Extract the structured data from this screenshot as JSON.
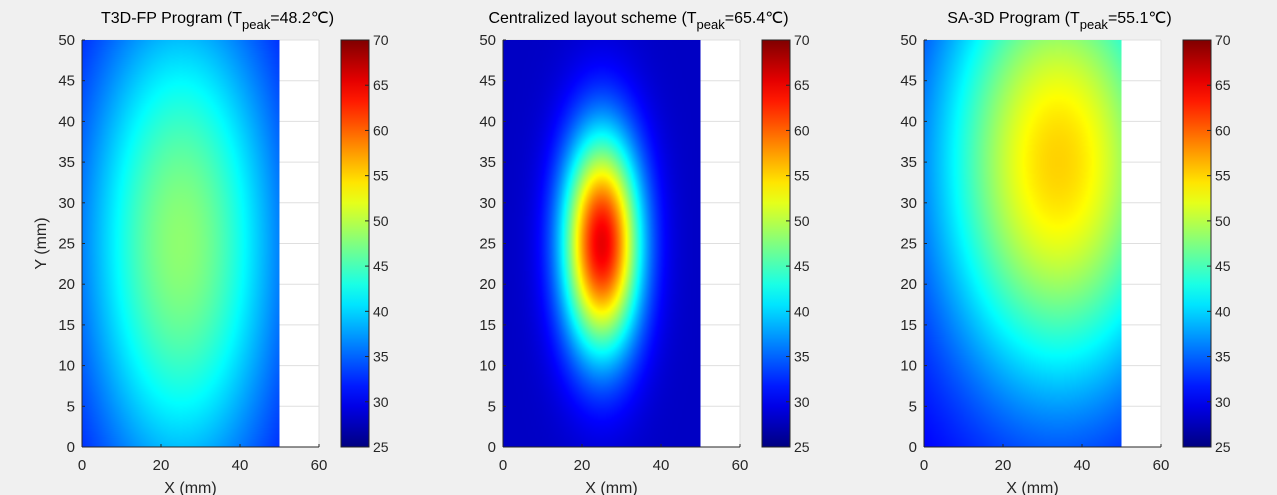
{
  "figure": {
    "background": "#f0f0f0",
    "colormap": "jet"
  },
  "chart_data": [
    {
      "type": "heatmap",
      "title_prefix": "T3D-FP Program (T",
      "title_sub": "peak",
      "title_suffix": "=48.2℃)",
      "peak_temperature": 48.2,
      "xlabel": "X (mm)",
      "ylabel": "Y (mm)",
      "xlim": [
        0,
        60
      ],
      "ylim": [
        0,
        50
      ],
      "xticks": [
        "0",
        "20",
        "40",
        "60"
      ],
      "yticks": [
        "0",
        "5",
        "10",
        "15",
        "20",
        "25",
        "30",
        "35",
        "40",
        "45",
        "50"
      ],
      "data_extent_x": [
        0,
        50
      ],
      "data_extent_y": [
        0,
        50
      ],
      "hotspot": {
        "x": 25,
        "y": 25,
        "sigma_x": 18,
        "sigma_y": 22
      },
      "base_temperature": 29,
      "colorbar": {
        "clim": [
          25,
          70
        ],
        "ticks": [
          "25",
          "30",
          "35",
          "40",
          "45",
          "50",
          "55",
          "60",
          "65",
          "70"
        ]
      },
      "grid": true
    },
    {
      "type": "heatmap",
      "title_prefix": "Centralized layout scheme (T",
      "title_sub": "peak",
      "title_suffix": "=65.4℃)",
      "peak_temperature": 65.4,
      "xlabel": "X (mm)",
      "ylabel": "",
      "xlim": [
        0,
        60
      ],
      "ylim": [
        0,
        50
      ],
      "xticks": [
        "0",
        "20",
        "40",
        "60"
      ],
      "yticks": [
        "0",
        "5",
        "10",
        "15",
        "20",
        "25",
        "30",
        "35",
        "40",
        "45",
        "50"
      ],
      "data_extent_x": [
        0,
        50
      ],
      "data_extent_y": [
        0,
        50
      ],
      "hotspot": {
        "x": 25,
        "y": 25,
        "sigma_x": 7,
        "sigma_y": 9.5
      },
      "base_temperature": 28,
      "colorbar": {
        "clim": [
          25,
          70
        ],
        "ticks": [
          "25",
          "30",
          "35",
          "40",
          "45",
          "50",
          "55",
          "60",
          "65",
          "70"
        ]
      },
      "grid": true
    },
    {
      "type": "heatmap",
      "title_prefix": "SA-3D Program (T",
      "title_sub": "peak",
      "title_suffix": "=55.1℃)",
      "peak_temperature": 55.1,
      "xlabel": "X (mm)",
      "ylabel": "",
      "xlim": [
        0,
        60
      ],
      "ylim": [
        0,
        50
      ],
      "xticks": [
        "0",
        "20",
        "40",
        "60"
      ],
      "yticks": [
        "0",
        "5",
        "10",
        "15",
        "20",
        "25",
        "30",
        "35",
        "40",
        "45",
        "50"
      ],
      "data_extent_x": [
        0,
        50
      ],
      "data_extent_y": [
        0,
        50
      ],
      "hotspot": {
        "x": 34,
        "y": 35,
        "sigma_x": 22,
        "sigma_y": 20
      },
      "base_temperature": 29,
      "colorbar": {
        "clim": [
          25,
          70
        ],
        "ticks": [
          "25",
          "30",
          "35",
          "40",
          "45",
          "50",
          "55",
          "60",
          "65",
          "70"
        ]
      },
      "grid": true
    }
  ]
}
